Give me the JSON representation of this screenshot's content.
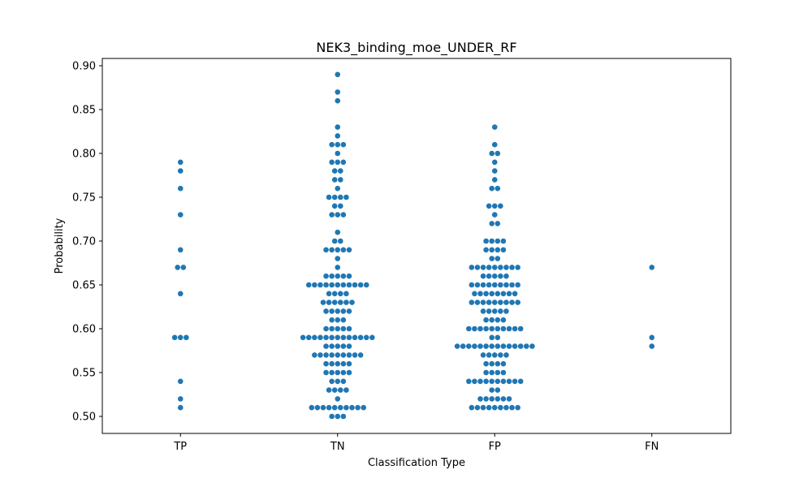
{
  "chart_data": {
    "type": "scatter",
    "subtype": "swarm",
    "title": "NEK3_binding_moe_UNDER_RF",
    "xlabel": "Classification Type",
    "ylabel": "Probability",
    "ylim": [
      0.48,
      0.905
    ],
    "yticks": [
      "0.50",
      "0.55",
      "0.60",
      "0.65",
      "0.70",
      "0.75",
      "0.80",
      "0.85",
      "0.90"
    ],
    "categories": [
      "TP",
      "TN",
      "FP",
      "FN"
    ],
    "point_color": "#1f77b4",
    "grid": false,
    "series": [
      {
        "category": "TP",
        "levels": [
          [
            0.51,
            1
          ],
          [
            0.52,
            1
          ],
          [
            0.54,
            1
          ],
          [
            0.59,
            3
          ],
          [
            0.64,
            1
          ],
          [
            0.67,
            2
          ],
          [
            0.69,
            1
          ],
          [
            0.73,
            1
          ],
          [
            0.76,
            1
          ],
          [
            0.78,
            1
          ],
          [
            0.79,
            1
          ]
        ]
      },
      {
        "category": "TN",
        "levels": [
          [
            0.5,
            3
          ],
          [
            0.51,
            10
          ],
          [
            0.52,
            1
          ],
          [
            0.53,
            4
          ],
          [
            0.54,
            3
          ],
          [
            0.55,
            5
          ],
          [
            0.56,
            5
          ],
          [
            0.57,
            9
          ],
          [
            0.58,
            5
          ],
          [
            0.59,
            13
          ],
          [
            0.6,
            5
          ],
          [
            0.61,
            3
          ],
          [
            0.62,
            5
          ],
          [
            0.63,
            6
          ],
          [
            0.64,
            4
          ],
          [
            0.65,
            11
          ],
          [
            0.66,
            5
          ],
          [
            0.67,
            1
          ],
          [
            0.68,
            1
          ],
          [
            0.69,
            5
          ],
          [
            0.7,
            2
          ],
          [
            0.71,
            1
          ],
          [
            0.73,
            3
          ],
          [
            0.74,
            2
          ],
          [
            0.75,
            4
          ],
          [
            0.76,
            1
          ],
          [
            0.77,
            2
          ],
          [
            0.78,
            2
          ],
          [
            0.79,
            3
          ],
          [
            0.8,
            1
          ],
          [
            0.81,
            3
          ],
          [
            0.82,
            1
          ],
          [
            0.83,
            1
          ],
          [
            0.86,
            1
          ],
          [
            0.87,
            1
          ],
          [
            0.89,
            1
          ]
        ]
      },
      {
        "category": "FP",
        "levels": [
          [
            0.51,
            9
          ],
          [
            0.52,
            6
          ],
          [
            0.53,
            2
          ],
          [
            0.54,
            10
          ],
          [
            0.55,
            4
          ],
          [
            0.56,
            4
          ],
          [
            0.57,
            5
          ],
          [
            0.58,
            14
          ],
          [
            0.59,
            2
          ],
          [
            0.6,
            10
          ],
          [
            0.61,
            4
          ],
          [
            0.62,
            5
          ],
          [
            0.63,
            9
          ],
          [
            0.64,
            8
          ],
          [
            0.65,
            9
          ],
          [
            0.66,
            5
          ],
          [
            0.67,
            9
          ],
          [
            0.68,
            2
          ],
          [
            0.69,
            4
          ],
          [
            0.7,
            4
          ],
          [
            0.72,
            2
          ],
          [
            0.73,
            1
          ],
          [
            0.74,
            3
          ],
          [
            0.76,
            2
          ],
          [
            0.77,
            1
          ],
          [
            0.78,
            1
          ],
          [
            0.79,
            1
          ],
          [
            0.8,
            2
          ],
          [
            0.81,
            1
          ],
          [
            0.83,
            1
          ]
        ]
      },
      {
        "category": "FN",
        "levels": [
          [
            0.58,
            1
          ],
          [
            0.59,
            1
          ],
          [
            0.67,
            1
          ]
        ]
      }
    ]
  }
}
